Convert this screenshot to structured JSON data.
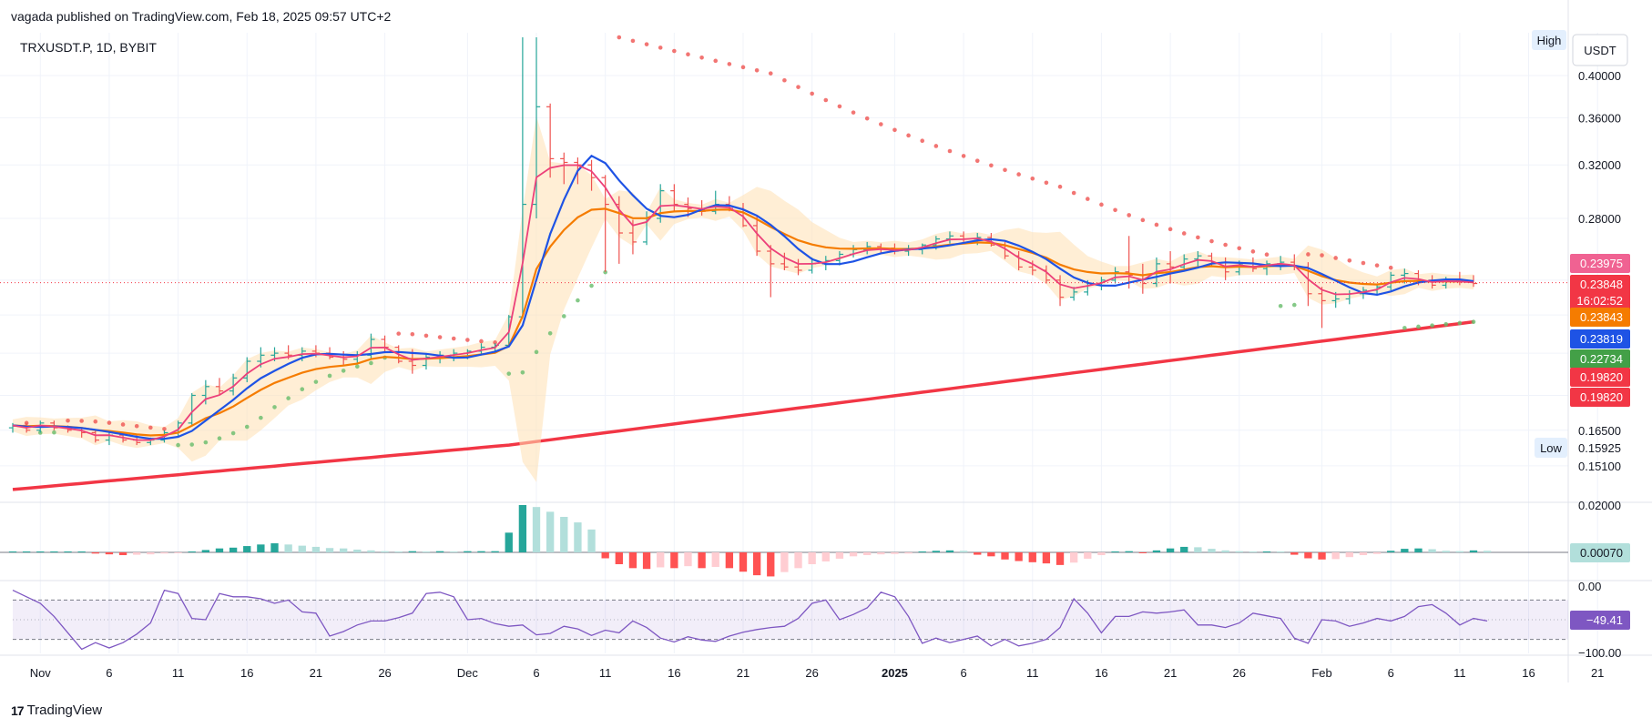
{
  "header": {
    "published_by": "vagada published on TradingView.com, Feb 18, 2025 09:57 UTC+2"
  },
  "footer": {
    "logo_text": "17",
    "brand": "TradingView"
  },
  "chart_data": {
    "type": "candlestick",
    "symbol_line": "TRXUSDT.P, 1D, BYBIT",
    "currency": "USDT",
    "high_label": "High",
    "low_label": "Low",
    "price_axis": {
      "scale": "log",
      "ylim": [
        0.143,
        0.435
      ],
      "ticks": [
        0.4,
        0.36,
        0.32,
        0.28,
        0.165,
        0.151
      ],
      "tick_labels": [
        "0.40000",
        "0.36000",
        "0.32000",
        "0.28000",
        "0.16500",
        "0.15100"
      ],
      "low_value_label": "0.15925",
      "current_price": 0.23848,
      "countdown": "16:02:52"
    },
    "price_tags": [
      {
        "value": 0.23975,
        "label": "0.23975",
        "color": "#f06292"
      },
      {
        "value": 0.23848,
        "label": "0.23848",
        "color": "#f23645"
      },
      {
        "value": 0.23843,
        "label": "0.23843",
        "color": "#f57c00"
      },
      {
        "value": 0.23819,
        "label": "0.23819",
        "color": "#1e53e5"
      },
      {
        "value": 0.22734,
        "label": "0.22734",
        "color": "#43a047"
      },
      {
        "value": 0.1982,
        "label": "0.19820",
        "color": "#f23645"
      },
      {
        "value": 0.1982,
        "label": "0.19820",
        "color": "#f23645"
      }
    ],
    "x_axis": {
      "labels": [
        "Nov",
        "6",
        "11",
        "16",
        "21",
        "26",
        "Dec",
        "6",
        "11",
        "16",
        "21",
        "26",
        "2025",
        "6",
        "11",
        "16",
        "21",
        "26",
        "Feb",
        "6",
        "11",
        "16",
        "21"
      ],
      "bold": [
        "2025"
      ]
    },
    "candles": [
      [
        0.166,
        0.168,
        0.164,
        0.167
      ],
      [
        0.167,
        0.168,
        0.164,
        0.165
      ],
      [
        0.165,
        0.169,
        0.164,
        0.168
      ],
      [
        0.168,
        0.169,
        0.165,
        0.166
      ],
      [
        0.166,
        0.167,
        0.164,
        0.165
      ],
      [
        0.165,
        0.166,
        0.162,
        0.164
      ],
      [
        0.164,
        0.165,
        0.16,
        0.161
      ],
      [
        0.161,
        0.164,
        0.159,
        0.163
      ],
      [
        0.163,
        0.164,
        0.16,
        0.161
      ],
      [
        0.161,
        0.163,
        0.159,
        0.16
      ],
      [
        0.16,
        0.162,
        0.159,
        0.161
      ],
      [
        0.161,
        0.165,
        0.16,
        0.164
      ],
      [
        0.164,
        0.169,
        0.162,
        0.168
      ],
      [
        0.168,
        0.181,
        0.167,
        0.18
      ],
      [
        0.18,
        0.187,
        0.176,
        0.184
      ],
      [
        0.184,
        0.188,
        0.18,
        0.182
      ],
      [
        0.182,
        0.19,
        0.18,
        0.188
      ],
      [
        0.188,
        0.198,
        0.186,
        0.196
      ],
      [
        0.196,
        0.203,
        0.193,
        0.199
      ],
      [
        0.199,
        0.203,
        0.196,
        0.2
      ],
      [
        0.2,
        0.204,
        0.197,
        0.199
      ],
      [
        0.199,
        0.203,
        0.196,
        0.201
      ],
      [
        0.201,
        0.204,
        0.198,
        0.2
      ],
      [
        0.2,
        0.203,
        0.197,
        0.198
      ],
      [
        0.198,
        0.201,
        0.194,
        0.197
      ],
      [
        0.197,
        0.201,
        0.195,
        0.199
      ],
      [
        0.199,
        0.21,
        0.197,
        0.207
      ],
      [
        0.207,
        0.209,
        0.2,
        0.203
      ],
      [
        0.203,
        0.204,
        0.195,
        0.196
      ],
      [
        0.196,
        0.202,
        0.19,
        0.194
      ],
      [
        0.194,
        0.2,
        0.192,
        0.198
      ],
      [
        0.198,
        0.201,
        0.195,
        0.199
      ],
      [
        0.199,
        0.202,
        0.196,
        0.2
      ],
      [
        0.2,
        0.202,
        0.197,
        0.201
      ],
      [
        0.201,
        0.205,
        0.199,
        0.203
      ],
      [
        0.203,
        0.205,
        0.201,
        0.204
      ],
      [
        0.204,
        0.22,
        0.203,
        0.219
      ],
      [
        0.219,
        0.44,
        0.218,
        0.29
      ],
      [
        0.29,
        0.44,
        0.28,
        0.37
      ],
      [
        0.37,
        0.373,
        0.31,
        0.325
      ],
      [
        0.325,
        0.33,
        0.305,
        0.322
      ],
      [
        0.322,
        0.326,
        0.305,
        0.32
      ],
      [
        0.32,
        0.324,
        0.3,
        0.31
      ],
      [
        0.31,
        0.312,
        0.245,
        0.29
      ],
      [
        0.29,
        0.296,
        0.25,
        0.27
      ],
      [
        0.27,
        0.279,
        0.256,
        0.264
      ],
      [
        0.264,
        0.285,
        0.262,
        0.28
      ],
      [
        0.28,
        0.305,
        0.277,
        0.3
      ],
      [
        0.3,
        0.305,
        0.285,
        0.29
      ],
      [
        0.29,
        0.295,
        0.281,
        0.287
      ],
      [
        0.287,
        0.293,
        0.282,
        0.285
      ],
      [
        0.285,
        0.3,
        0.283,
        0.29
      ],
      [
        0.29,
        0.296,
        0.285,
        0.287
      ],
      [
        0.287,
        0.291,
        0.274,
        0.275
      ],
      [
        0.275,
        0.282,
        0.255,
        0.258
      ],
      [
        0.258,
        0.262,
        0.23,
        0.25
      ],
      [
        0.25,
        0.257,
        0.246,
        0.248
      ],
      [
        0.248,
        0.253,
        0.243,
        0.246
      ],
      [
        0.246,
        0.254,
        0.244,
        0.25
      ],
      [
        0.25,
        0.255,
        0.246,
        0.252
      ],
      [
        0.252,
        0.258,
        0.249,
        0.256
      ],
      [
        0.256,
        0.262,
        0.254,
        0.259
      ],
      [
        0.259,
        0.264,
        0.256,
        0.261
      ],
      [
        0.261,
        0.263,
        0.257,
        0.26
      ],
      [
        0.26,
        0.263,
        0.256,
        0.258
      ],
      [
        0.258,
        0.262,
        0.255,
        0.259
      ],
      [
        0.259,
        0.263,
        0.256,
        0.262
      ],
      [
        0.262,
        0.268,
        0.259,
        0.266
      ],
      [
        0.266,
        0.271,
        0.263,
        0.268
      ],
      [
        0.268,
        0.271,
        0.264,
        0.266
      ],
      [
        0.266,
        0.27,
        0.262,
        0.267
      ],
      [
        0.267,
        0.27,
        0.261,
        0.262
      ],
      [
        0.262,
        0.264,
        0.253,
        0.255
      ],
      [
        0.255,
        0.258,
        0.246,
        0.248
      ],
      [
        0.248,
        0.252,
        0.243,
        0.246
      ],
      [
        0.246,
        0.249,
        0.238,
        0.24
      ],
      [
        0.24,
        0.243,
        0.225,
        0.23
      ],
      [
        0.23,
        0.236,
        0.228,
        0.233
      ],
      [
        0.233,
        0.24,
        0.231,
        0.238
      ],
      [
        0.238,
        0.242,
        0.234,
        0.24
      ],
      [
        0.24,
        0.248,
        0.238,
        0.245
      ],
      [
        0.245,
        0.268,
        0.235,
        0.243
      ],
      [
        0.243,
        0.25,
        0.232,
        0.238
      ],
      [
        0.238,
        0.254,
        0.236,
        0.25
      ],
      [
        0.25,
        0.258,
        0.238,
        0.248
      ],
      [
        0.248,
        0.256,
        0.246,
        0.253
      ],
      [
        0.253,
        0.258,
        0.248,
        0.255
      ],
      [
        0.255,
        0.257,
        0.249,
        0.251
      ],
      [
        0.251,
        0.254,
        0.24,
        0.245
      ],
      [
        0.245,
        0.252,
        0.243,
        0.25
      ],
      [
        0.25,
        0.254,
        0.245,
        0.247
      ],
      [
        0.247,
        0.252,
        0.243,
        0.25
      ],
      [
        0.25,
        0.255,
        0.246,
        0.251
      ],
      [
        0.251,
        0.256,
        0.246,
        0.248
      ],
      [
        0.248,
        0.251,
        0.225,
        0.232
      ],
      [
        0.232,
        0.236,
        0.213,
        0.228
      ],
      [
        0.228,
        0.233,
        0.224,
        0.229
      ],
      [
        0.229,
        0.234,
        0.226,
        0.232
      ],
      [
        0.232,
        0.236,
        0.229,
        0.234
      ],
      [
        0.234,
        0.238,
        0.231,
        0.236
      ],
      [
        0.236,
        0.245,
        0.234,
        0.243
      ],
      [
        0.243,
        0.247,
        0.238,
        0.244
      ],
      [
        0.244,
        0.246,
        0.237,
        0.24
      ],
      [
        0.24,
        0.243,
        0.235,
        0.237
      ],
      [
        0.237,
        0.242,
        0.235,
        0.24
      ],
      [
        0.24,
        0.245,
        0.237,
        0.239
      ],
      [
        0.239,
        0.243,
        0.236,
        0.238
      ]
    ],
    "ma_long": {
      "start": 0.1423,
      "dec2": 0.159,
      "end": 0.2163,
      "color": "#f23645"
    },
    "macd_histogram": {
      "ylabel_ticks": [
        "0.02000"
      ],
      "current_label": "0.00070",
      "values": [
        0.0001,
        0.0001,
        0.0001,
        0.0001,
        0.0001,
        0.0001,
        -0.0003,
        -0.0005,
        -0.0007,
        -0.0006,
        -0.0005,
        -0.0003,
        -0.0001,
        0.0002,
        0.0006,
        0.001,
        0.0012,
        0.0016,
        0.002,
        0.0023,
        0.002,
        0.0017,
        0.0014,
        0.0011,
        0.001,
        0.0007,
        0.0005,
        0.0003,
        0.0002,
        0.0003,
        0.0002,
        0.0003,
        0.0002,
        0.0003,
        0.0003,
        0.0003,
        0.005,
        0.012,
        0.0115,
        0.0103,
        0.009,
        0.0076,
        0.0058,
        -0.0015,
        -0.003,
        -0.004,
        -0.0042,
        -0.0038,
        -0.004,
        -0.0035,
        -0.004,
        -0.0037,
        -0.004,
        -0.0049,
        -0.0058,
        -0.0061,
        -0.005,
        -0.004,
        -0.003,
        -0.0023,
        -0.0016,
        -0.001,
        -0.0007,
        -0.0005,
        -0.0004,
        -0.0003,
        0.0002,
        0.0004,
        0.0005,
        0.0004,
        -0.0006,
        -0.001,
        -0.0018,
        -0.0022,
        -0.0025,
        -0.0028,
        -0.0032,
        -0.0026,
        -0.0016,
        -0.0007,
        0.0002,
        0.0003,
        -0.0001,
        0.0005,
        0.001,
        0.0014,
        0.0013,
        0.0009,
        0.0005,
        0.0003,
        0.0001,
        0.0002,
        0.0001,
        -0.0006,
        -0.0015,
        -0.0018,
        -0.0017,
        -0.0012,
        -0.0007,
        -0.0004,
        0.0004,
        0.0009,
        0.001,
        0.0008,
        0.0004,
        0.0003,
        0.0005,
        0.0004
      ]
    },
    "oscillator": {
      "ticks": [
        "0.00",
        "−100.00"
      ],
      "current_label": "−49.41",
      "upper_band": -20,
      "lower_band": -80,
      "values": [
        -5,
        -15,
        -25,
        -45,
        -70,
        -95,
        -85,
        -93,
        -85,
        -72,
        -55,
        -5,
        -10,
        -48,
        -50,
        -10,
        -15,
        -15,
        -18,
        -25,
        -20,
        -38,
        -40,
        -75,
        -68,
        -58,
        -52,
        -52,
        -47,
        -40,
        -10,
        -8,
        -15,
        -50,
        -48,
        -56,
        -60,
        -58,
        -73,
        -71,
        -60,
        -64,
        -74,
        -66,
        -70,
        -52,
        -62,
        -78,
        -84,
        -76,
        -81,
        -83,
        -75,
        -69,
        -65,
        -62,
        -60,
        -48,
        -25,
        -20,
        -50,
        -42,
        -32,
        -8,
        -15,
        -45,
        -86,
        -78,
        -85,
        -80,
        -75,
        -90,
        -80,
        -90,
        -86,
        -80,
        -62,
        -18,
        -40,
        -70,
        -45,
        -45,
        -38,
        -40,
        -38,
        -35,
        -58,
        -58,
        -62,
        -55,
        -40,
        -44,
        -48,
        -78,
        -86,
        -50,
        -52,
        -60,
        -55,
        -48,
        -52,
        -45,
        -30,
        -27,
        -40,
        -58,
        -48,
        -52
      ]
    }
  }
}
